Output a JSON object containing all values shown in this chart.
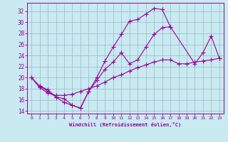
{
  "xlabel": "Windchill (Refroidissement éolien,°C)",
  "bg_color": "#c8eaf0",
  "line_color": "#990099",
  "grid_color": "#9ab8c8",
  "xlim": [
    -0.5,
    23.5
  ],
  "ylim": [
    13.5,
    33.5
  ],
  "xticks": [
    0,
    1,
    2,
    3,
    4,
    5,
    6,
    7,
    8,
    9,
    10,
    11,
    12,
    13,
    14,
    15,
    16,
    17,
    18,
    19,
    20,
    21,
    22,
    23
  ],
  "yticks": [
    14,
    16,
    18,
    20,
    22,
    24,
    26,
    28,
    30,
    32
  ],
  "curve1_x": [
    0,
    1,
    2,
    3,
    4,
    5,
    6,
    7,
    8,
    9,
    10,
    11,
    12,
    13,
    14,
    15,
    16,
    17
  ],
  "curve1_y": [
    20.0,
    18.5,
    17.8,
    16.5,
    16.2,
    15.0,
    14.5,
    17.5,
    20.0,
    23.0,
    25.5,
    27.8,
    30.2,
    30.5,
    31.5,
    32.5,
    32.3,
    29.2
  ],
  "curve2_x": [
    0,
    1,
    2,
    3,
    4,
    5,
    6,
    7,
    8,
    9,
    10,
    11,
    12,
    13,
    14,
    15,
    16,
    17,
    18,
    19,
    20,
    21,
    22,
    23
  ],
  "curve2_y": [
    20.0,
    18.2,
    17.2,
    16.8,
    16.8,
    17.0,
    17.5,
    18.0,
    18.5,
    19.2,
    20.0,
    20.5,
    21.2,
    21.8,
    22.3,
    22.8,
    23.2,
    23.2,
    22.5,
    22.5,
    22.8,
    23.0,
    23.2,
    23.5
  ],
  "curve3_x": [
    1,
    2,
    3,
    4,
    5,
    6,
    7,
    8,
    9,
    10,
    11,
    12,
    13,
    14,
    15,
    16,
    17,
    20,
    21,
    22,
    23
  ],
  "curve3_y": [
    18.5,
    17.5,
    16.5,
    15.5,
    15.0,
    14.5,
    17.5,
    19.5,
    21.5,
    22.8,
    24.5,
    22.5,
    23.2,
    25.5,
    27.8,
    29.0,
    29.2,
    22.5,
    24.5,
    27.5,
    23.5
  ]
}
